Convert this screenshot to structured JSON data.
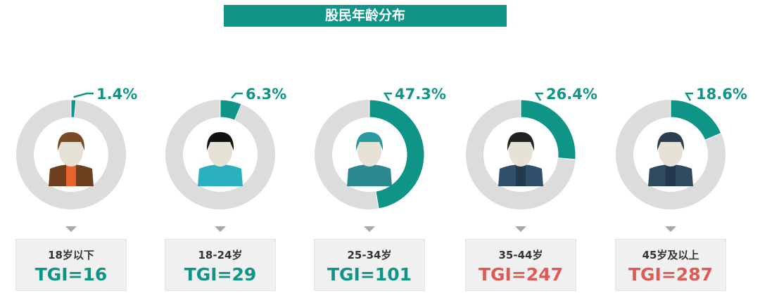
{
  "title": "股民年龄分布",
  "colors": {
    "accent": "#0f9488",
    "ring": "#dcdcdc",
    "tgi_low": "#0f9488",
    "tgi_high": "#e05a55"
  },
  "chart_data": {
    "type": "donut",
    "title": "股民年龄分布",
    "categories": [
      "18岁以下",
      "18-24岁",
      "25-34岁",
      "35-44岁",
      "45岁及以上"
    ],
    "values": [
      1.4,
      6.3,
      47.3,
      26.4,
      18.6
    ],
    "value_labels": [
      "1.4%",
      "6.3%",
      "47.3%",
      "26.4%",
      "18.6%"
    ],
    "tgi": [
      16,
      29,
      101,
      247,
      287
    ],
    "tgi_labels": [
      "TGI=16",
      "TGI=29",
      "TGI=101",
      "TGI=247",
      "TGI=287"
    ],
    "avatars": [
      "child-avatar-icon",
      "young-woman-avatar-icon",
      "capped-man-avatar-icon",
      "glasses-man-avatar-icon",
      "hat-mustache-man-avatar-icon"
    ]
  }
}
